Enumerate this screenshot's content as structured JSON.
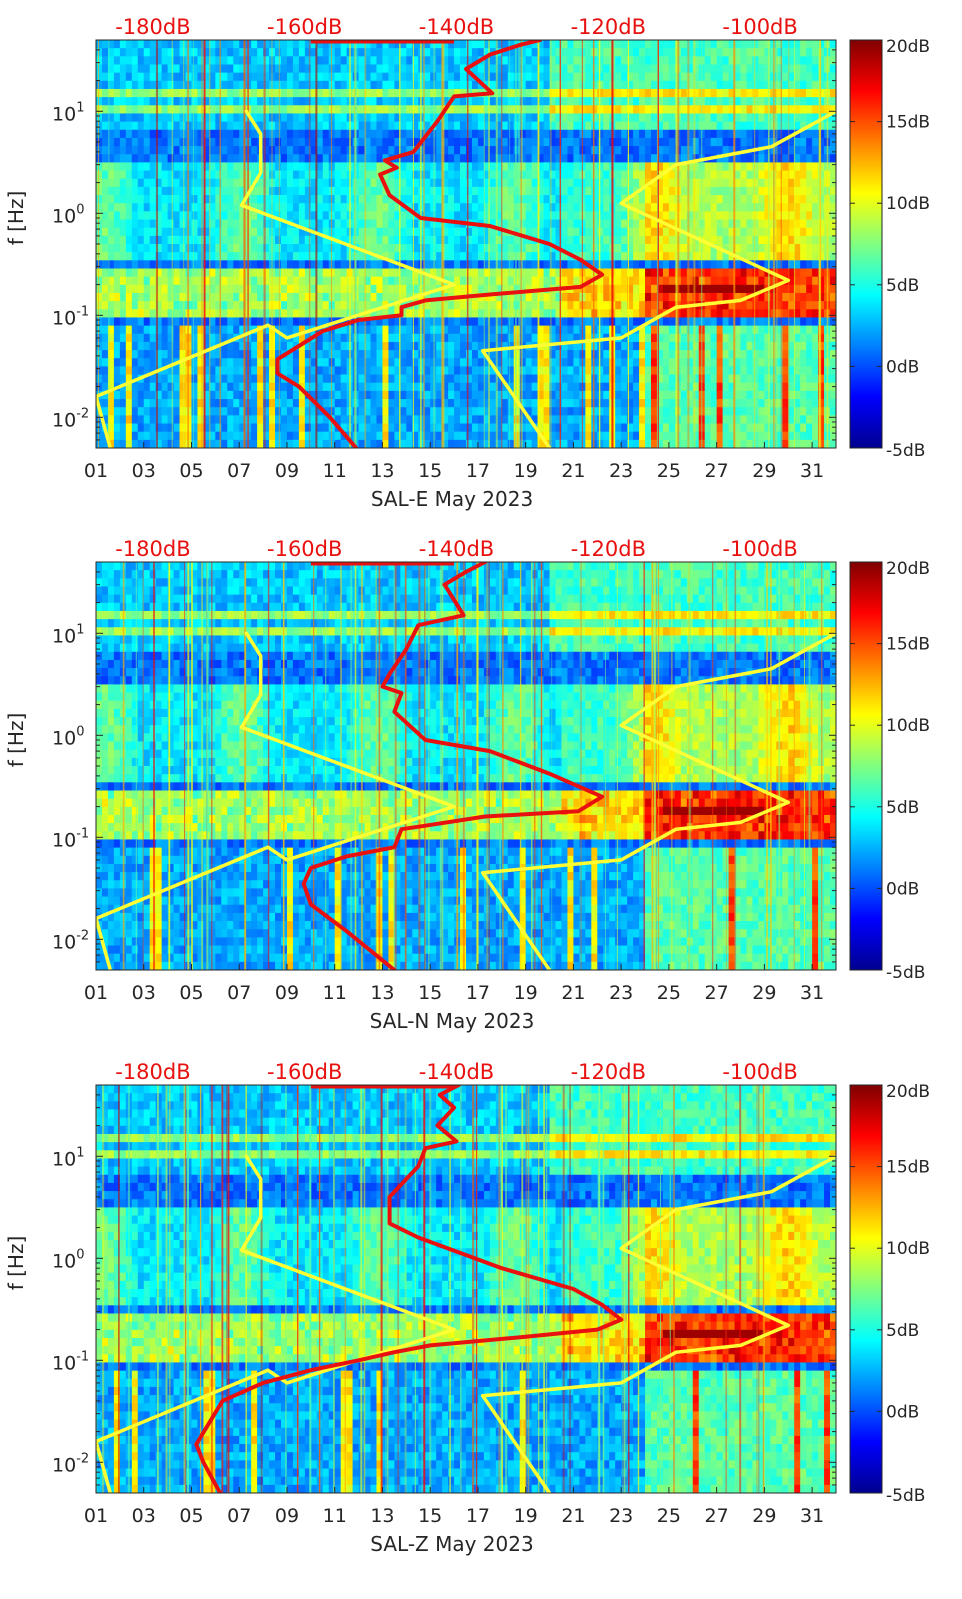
{
  "colormap": [
    "#00008f",
    "#0000ff",
    "#0080ff",
    "#00ffff",
    "#80ff80",
    "#ffff00",
    "#ff8000",
    "#ff0000",
    "#800000"
  ],
  "colors": {
    "noise_model_lines": "#ffff33",
    "psd_line": "#e8110f",
    "top_axis_labels": "#e8110f",
    "axes": "#262626"
  },
  "chart_data": [
    {
      "type": "heatmap",
      "xlabel": "SAL-E May 2023",
      "ylabel": "f [Hz]",
      "x_ticks": [
        "01",
        "03",
        "05",
        "07",
        "09",
        "11",
        "13",
        "15",
        "17",
        "19",
        "21",
        "23",
        "25",
        "27",
        "29",
        "31"
      ],
      "x_tick_values": [
        1,
        3,
        5,
        7,
        9,
        11,
        13,
        15,
        17,
        19,
        21,
        23,
        25,
        27,
        29,
        31
      ],
      "xlim": [
        1,
        32
      ],
      "y_scale": "log",
      "ylim": [
        0.005,
        50
      ],
      "y_ticks": [
        "10-2",
        "10-1",
        "100",
        "101"
      ],
      "y_tick_values": [
        0.01,
        0.1,
        1,
        10
      ],
      "top_ticks": [
        "-180dB",
        "-160dB",
        "-140dB",
        "-120dB",
        "-100dB"
      ],
      "top_tick_values": [
        -180,
        -160,
        -140,
        -120,
        -100
      ],
      "top_xlim": [
        -187.5,
        -90
      ],
      "colorbar": {
        "ticks": [
          "20dB",
          "15dB",
          "10dB",
          "5dB",
          "0dB",
          "-5dB"
        ],
        "values": [
          20,
          15,
          10,
          5,
          0,
          -5
        ],
        "range": [
          -5,
          20
        ]
      },
      "series": [
        {
          "kind": "noise-model",
          "color": "#ffff33",
          "points": [
            [
              7.3,
              10
            ],
            [
              7.9,
              6
            ],
            [
              7.9,
              2.5
            ],
            [
              7.1,
              1.2
            ],
            [
              16,
              0.2
            ],
            [
              9,
              0.06
            ],
            [
              8.2,
              0.08
            ],
            [
              1,
              0.016
            ],
            [
              1.6,
              0.005
            ]
          ]
        },
        {
          "kind": "noise-model",
          "color": "#ffff33",
          "points": [
            [
              32,
              10
            ],
            [
              29.3,
              4.5
            ],
            [
              25.3,
              3
            ],
            [
              23,
              1.25
            ],
            [
              30,
              0.22
            ],
            [
              28,
              0.14
            ],
            [
              25.3,
              0.12
            ],
            [
              23,
              0.06
            ],
            [
              17.2,
              0.045
            ],
            [
              20,
              0.005
            ]
          ]
        },
        {
          "kind": "psd",
          "color": "#e8110f",
          "points": [
            [
              19.6,
              50
            ],
            [
              18.8,
              45
            ],
            [
              17.5,
              36
            ],
            [
              16.5,
              26
            ],
            [
              17.6,
              15
            ],
            [
              16,
              14
            ],
            [
              15.3,
              8
            ],
            [
              14.3,
              4
            ],
            [
              13.1,
              3.3
            ],
            [
              13.6,
              2.8
            ],
            [
              12.9,
              2.4
            ],
            [
              13.3,
              1.5
            ],
            [
              14.6,
              0.9
            ],
            [
              17.5,
              0.75
            ],
            [
              20,
              0.5
            ],
            [
              21.3,
              0.35
            ],
            [
              22.2,
              0.25
            ],
            [
              21.3,
              0.19
            ],
            [
              17.5,
              0.16
            ],
            [
              14.8,
              0.14
            ],
            [
              13.8,
              0.12
            ],
            [
              13.8,
              0.1
            ],
            [
              12,
              0.09
            ],
            [
              10.5,
              0.07
            ],
            [
              9.5,
              0.05
            ],
            [
              8.6,
              0.037
            ],
            [
              8.6,
              0.027
            ],
            [
              9.5,
              0.02
            ],
            [
              10.8,
              0.01
            ],
            [
              11.9,
              0.005
            ]
          ]
        }
      ]
    },
    {
      "type": "heatmap",
      "xlabel": "SAL-N May 2023",
      "ylabel": "f [Hz]",
      "x_ticks": [
        "01",
        "03",
        "05",
        "07",
        "09",
        "11",
        "13",
        "15",
        "17",
        "19",
        "21",
        "23",
        "25",
        "27",
        "29",
        "31"
      ],
      "x_tick_values": [
        1,
        3,
        5,
        7,
        9,
        11,
        13,
        15,
        17,
        19,
        21,
        23,
        25,
        27,
        29,
        31
      ],
      "xlim": [
        1,
        32
      ],
      "y_scale": "log",
      "ylim": [
        0.005,
        50
      ],
      "y_ticks": [
        "10-2",
        "10-1",
        "100",
        "101"
      ],
      "y_tick_values": [
        0.01,
        0.1,
        1,
        10
      ],
      "top_ticks": [
        "-180dB",
        "-160dB",
        "-140dB",
        "-120dB",
        "-100dB"
      ],
      "top_tick_values": [
        -180,
        -160,
        -140,
        -120,
        -100
      ],
      "top_xlim": [
        -187.5,
        -90
      ],
      "colorbar": {
        "ticks": [
          "20dB",
          "15dB",
          "10dB",
          "5dB",
          "0dB",
          "-5dB"
        ],
        "values": [
          20,
          15,
          10,
          5,
          0,
          -5
        ],
        "range": [
          -5,
          20
        ]
      },
      "series": [
        {
          "kind": "noise-model",
          "color": "#ffff33",
          "points": [
            [
              7.3,
              10
            ],
            [
              7.9,
              6
            ],
            [
              7.9,
              2.5
            ],
            [
              7.1,
              1.2
            ],
            [
              16,
              0.2
            ],
            [
              9,
              0.06
            ],
            [
              8.2,
              0.08
            ],
            [
              1,
              0.016
            ],
            [
              1.6,
              0.005
            ]
          ]
        },
        {
          "kind": "noise-model",
          "color": "#ffff33",
          "points": [
            [
              32,
              10
            ],
            [
              29.3,
              4.5
            ],
            [
              25.3,
              3
            ],
            [
              23,
              1.25
            ],
            [
              30,
              0.22
            ],
            [
              28,
              0.14
            ],
            [
              25.3,
              0.12
            ],
            [
              23,
              0.06
            ],
            [
              17.2,
              0.045
            ],
            [
              20,
              0.005
            ]
          ]
        },
        {
          "kind": "psd",
          "color": "#e8110f",
          "points": [
            [
              17.3,
              50
            ],
            [
              16.5,
              40
            ],
            [
              15.6,
              30
            ],
            [
              16.4,
              15
            ],
            [
              14.5,
              12
            ],
            [
              14,
              7
            ],
            [
              13.3,
              4
            ],
            [
              13,
              3
            ],
            [
              13.8,
              2.6
            ],
            [
              13.5,
              1.7
            ],
            [
              14.8,
              0.9
            ],
            [
              17.5,
              0.7
            ],
            [
              20,
              0.42
            ],
            [
              22.2,
              0.25
            ],
            [
              21.2,
              0.18
            ],
            [
              17.3,
              0.16
            ],
            [
              14.8,
              0.13
            ],
            [
              13.8,
              0.12
            ],
            [
              13.5,
              0.08
            ],
            [
              11.5,
              0.065
            ],
            [
              10,
              0.05
            ],
            [
              9.7,
              0.035
            ],
            [
              10,
              0.022
            ],
            [
              11.5,
              0.012
            ],
            [
              13.5,
              0.005
            ]
          ]
        }
      ]
    },
    {
      "type": "heatmap",
      "xlabel": "SAL-Z May 2023",
      "ylabel": "f [Hz]",
      "x_ticks": [
        "01",
        "03",
        "05",
        "07",
        "09",
        "11",
        "13",
        "15",
        "17",
        "19",
        "21",
        "23",
        "25",
        "27",
        "29",
        "31"
      ],
      "x_tick_values": [
        1,
        3,
        5,
        7,
        9,
        11,
        13,
        15,
        17,
        19,
        21,
        23,
        25,
        27,
        29,
        31
      ],
      "xlim": [
        1,
        32
      ],
      "y_scale": "log",
      "ylim": [
        0.005,
        50
      ],
      "y_ticks": [
        "10-2",
        "10-1",
        "100",
        "101"
      ],
      "y_tick_values": [
        0.01,
        0.1,
        1,
        10
      ],
      "top_ticks": [
        "-180dB",
        "-160dB",
        "-140dB",
        "-120dB",
        "-100dB"
      ],
      "top_tick_values": [
        -180,
        -160,
        -140,
        -120,
        -100
      ],
      "top_xlim": [
        -187.5,
        -90
      ],
      "colorbar": {
        "ticks": [
          "20dB",
          "15dB",
          "10dB",
          "5dB",
          "0dB",
          "-5dB"
        ],
        "values": [
          20,
          15,
          10,
          5,
          0,
          -5
        ],
        "range": [
          -5,
          20
        ]
      },
      "series": [
        {
          "kind": "noise-model",
          "color": "#ffff33",
          "points": [
            [
              7.3,
              10
            ],
            [
              7.9,
              6
            ],
            [
              7.9,
              2.5
            ],
            [
              7.1,
              1.2
            ],
            [
              16,
              0.2
            ],
            [
              9,
              0.06
            ],
            [
              8.2,
              0.08
            ],
            [
              1,
              0.016
            ],
            [
              1.6,
              0.005
            ]
          ]
        },
        {
          "kind": "noise-model",
          "color": "#ffff33",
          "points": [
            [
              32,
              10
            ],
            [
              29.3,
              4.5
            ],
            [
              25.3,
              3
            ],
            [
              23,
              1.25
            ],
            [
              30,
              0.22
            ],
            [
              28,
              0.14
            ],
            [
              25.3,
              0.12
            ],
            [
              23,
              0.06
            ],
            [
              17.2,
              0.045
            ],
            [
              20,
              0.005
            ]
          ]
        },
        {
          "kind": "psd",
          "color": "#e8110f",
          "points": [
            [
              16.2,
              50
            ],
            [
              15.4,
              40
            ],
            [
              16,
              30
            ],
            [
              15.3,
              20
            ],
            [
              16.1,
              14
            ],
            [
              14.8,
              12
            ],
            [
              14.5,
              8
            ],
            [
              13.3,
              4
            ],
            [
              13.3,
              2.2
            ],
            [
              14.5,
              1.6
            ],
            [
              18,
              0.8
            ],
            [
              21,
              0.5
            ],
            [
              22.2,
              0.35
            ],
            [
              23,
              0.25
            ],
            [
              22,
              0.2
            ],
            [
              19,
              0.17
            ],
            [
              15,
              0.14
            ],
            [
              13.5,
              0.12
            ],
            [
              12,
              0.1
            ],
            [
              10,
              0.08
            ],
            [
              8,
              0.06
            ],
            [
              6.3,
              0.04
            ],
            [
              5.2,
              0.015
            ],
            [
              5.5,
              0.01
            ],
            [
              6.2,
              0.005
            ]
          ]
        }
      ]
    }
  ]
}
